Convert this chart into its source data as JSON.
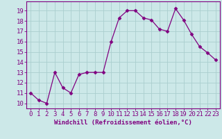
{
  "x": [
    0,
    1,
    2,
    3,
    4,
    5,
    6,
    7,
    8,
    9,
    10,
    11,
    12,
    13,
    14,
    15,
    16,
    17,
    18,
    19,
    20,
    21,
    22,
    23
  ],
  "y": [
    11.0,
    10.3,
    10.0,
    13.0,
    11.5,
    11.0,
    12.8,
    13.0,
    13.0,
    13.0,
    16.0,
    18.3,
    19.0,
    19.0,
    18.3,
    18.1,
    17.2,
    17.0,
    19.2,
    18.1,
    16.7,
    15.5,
    14.9,
    14.2
  ],
  "line_color": "#800080",
  "marker": "D",
  "marker_size": 2.5,
  "bg_color": "#cce8e8",
  "grid_color": "#aacece",
  "xlabel": "Windchill (Refroidissement éolien,°C)",
  "xlabel_fontsize": 6.5,
  "ylabel_ticks": [
    10,
    11,
    12,
    13,
    14,
    15,
    16,
    17,
    18,
    19
  ],
  "xlim": [
    -0.5,
    23.5
  ],
  "ylim": [
    9.5,
    19.9
  ],
  "tick_label_fontsize": 6.5,
  "tick_color": "#800080"
}
